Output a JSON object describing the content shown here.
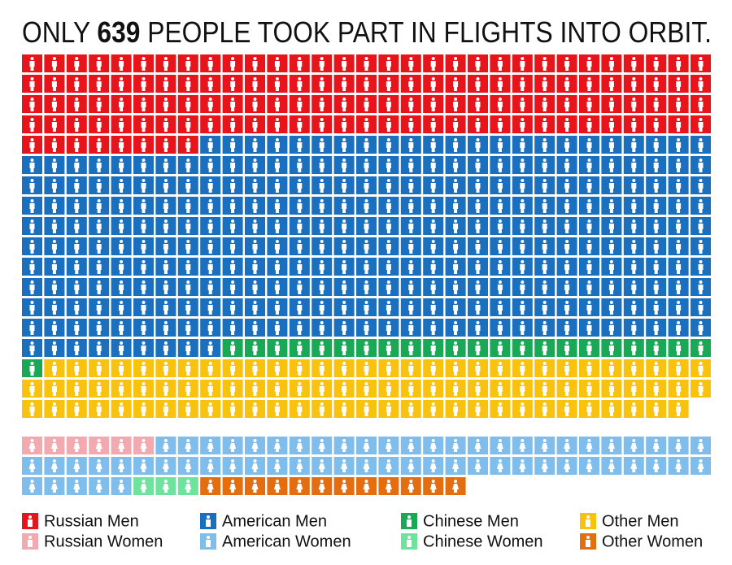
{
  "chart_data": {
    "type": "waffle",
    "title_prefix": "ONLY",
    "title_number": 639,
    "title_suffix": "PEOPLE TOOK PART IN FLIGHTS INTO ORBIT.",
    "series": [
      {
        "name": "Russian Men",
        "color": "#e8141b",
        "values": 132
      },
      {
        "name": "American Men",
        "color": "#1a6fbe",
        "values": 311
      },
      {
        "name": "Chinese Men",
        "color": "#19a855",
        "values": 23
      },
      {
        "name": "Other Men",
        "color": "#f8c20f",
        "values": 91
      },
      {
        "name": "Russian Women",
        "color": "#f3a9b0",
        "values": 6
      },
      {
        "name": "American Women",
        "color": "#7fbdec",
        "values": 61
      },
      {
        "name": "Chinese Women",
        "color": "#6fe39d",
        "values": 3
      },
      {
        "name": "Other Women",
        "color": "#e46d10",
        "values": 12
      }
    ]
  }
}
